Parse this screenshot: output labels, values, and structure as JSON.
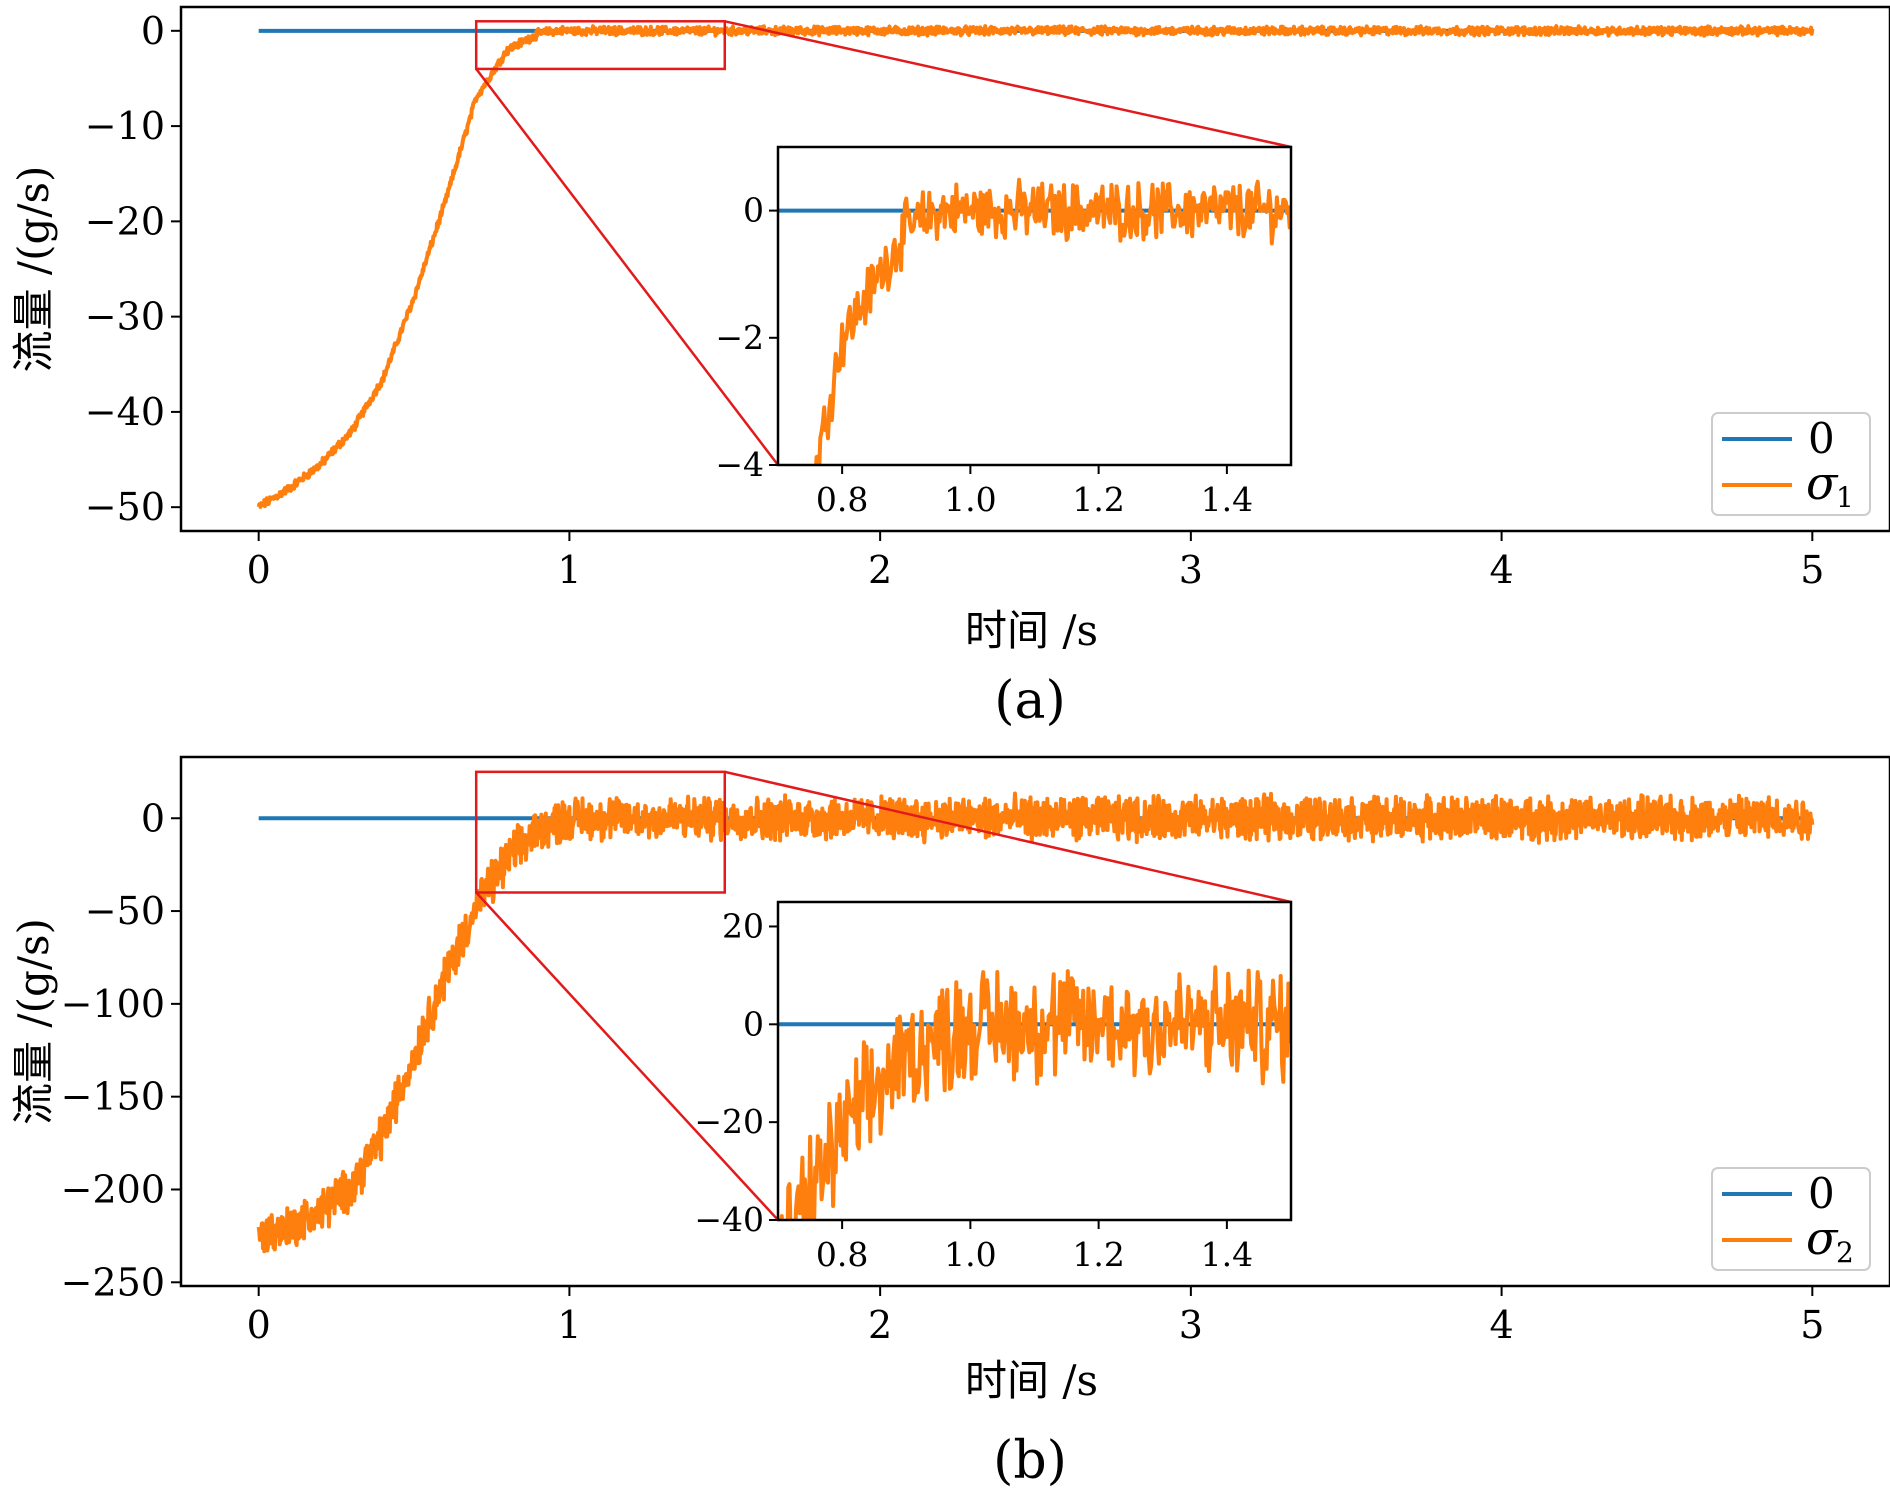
{
  "colors": {
    "reference": "#1f77b4",
    "signal": "#ff7f0e",
    "zoom_box": "#e31a1c",
    "axes": "#000000",
    "legend_border": "#cccccc"
  },
  "chart_data": [
    {
      "id": "a",
      "type": "line",
      "caption": "(a)",
      "xlabel": "时间 /s",
      "ylabel": "流量 /(g/s)",
      "xlim": [
        -0.25,
        5.25
      ],
      "ylim": [
        -52.5,
        2.5
      ],
      "xticks": [
        0,
        1,
        2,
        3,
        4,
        5
      ],
      "xtick_labels": [
        "0",
        "1",
        "2",
        "3",
        "4",
        "5"
      ],
      "yticks": [
        0,
        -10,
        -20,
        -30,
        -40,
        -50
      ],
      "ytick_labels": [
        "0",
        "−10",
        "−20",
        "−30",
        "−40",
        "−50"
      ],
      "grid": false,
      "legend_position": "lower-right",
      "series": [
        {
          "name": "0",
          "color_key": "reference",
          "x": [
            0,
            5
          ],
          "y": [
            0,
            0
          ]
        },
        {
          "name": "σ1",
          "color_key": "signal",
          "noise_amplitude": 0.35,
          "x": [
            0,
            0.1,
            0.2,
            0.3,
            0.4,
            0.5,
            0.6,
            0.7,
            0.8,
            0.9,
            0.95,
            1.0,
            1.2,
            1.5,
            2.0,
            3.0,
            4.0,
            5.0
          ],
          "y": [
            -50,
            -48,
            -45.5,
            -42,
            -36.5,
            -28,
            -18,
            -7,
            -2,
            -0.3,
            0,
            0,
            0,
            0,
            0,
            0,
            0,
            0
          ]
        }
      ],
      "zoom_box": {
        "x": [
          0.7,
          1.5
        ],
        "y": [
          -4,
          1
        ]
      },
      "inset": {
        "xlim": [
          0.7,
          1.5
        ],
        "ylim": [
          -4,
          1
        ],
        "xticks": [
          0.8,
          1.0,
          1.2,
          1.4
        ],
        "xtick_labels": [
          "0.8",
          "1.0",
          "1.2",
          "1.4"
        ],
        "yticks": [
          0,
          -2,
          -4
        ],
        "ytick_labels": [
          "0",
          "−2",
          "−4"
        ]
      }
    },
    {
      "id": "b",
      "type": "line",
      "caption": "(b)",
      "xlabel": "时间 /s",
      "ylabel": "流量 /(g/s)",
      "xlim": [
        -0.25,
        5.25
      ],
      "ylim": [
        -252,
        33
      ],
      "xticks": [
        0,
        1,
        2,
        3,
        4,
        5
      ],
      "xtick_labels": [
        "0",
        "1",
        "2",
        "3",
        "4",
        "5"
      ],
      "yticks": [
        0,
        -50,
        -100,
        -150,
        -200,
        -250
      ],
      "ytick_labels": [
        "0",
        "−50",
        "−100",
        "−150",
        "−200",
        "−250"
      ],
      "grid": false,
      "legend_position": "lower-right",
      "series": [
        {
          "name": "0",
          "color_key": "reference",
          "x": [
            0,
            5
          ],
          "y": [
            0,
            0
          ]
        },
        {
          "name": "σ2",
          "color_key": "signal",
          "noise_amplitude": 9,
          "x": [
            0,
            0.1,
            0.2,
            0.3,
            0.4,
            0.5,
            0.6,
            0.7,
            0.8,
            0.9,
            1.0,
            1.2,
            1.5,
            2.0,
            3.0,
            4.0,
            5.0
          ],
          "y": [
            -225,
            -220,
            -212,
            -198,
            -170,
            -128,
            -85,
            -48,
            -22,
            -6,
            0,
            0,
            0,
            0,
            0,
            0,
            0
          ]
        }
      ],
      "zoom_box": {
        "x": [
          0.7,
          1.5
        ],
        "y": [
          -40,
          25
        ]
      },
      "inset": {
        "xlim": [
          0.7,
          1.5
        ],
        "ylim": [
          -40,
          25
        ],
        "xticks": [
          0.8,
          1.0,
          1.2,
          1.4
        ],
        "xtick_labels": [
          "0.8",
          "1.0",
          "1.2",
          "1.4"
        ],
        "yticks": [
          20,
          0,
          -20,
          -40
        ],
        "ytick_labels": [
          "20",
          "0",
          "−20",
          "−40"
        ]
      }
    }
  ],
  "legend": {
    "reference_label": "0",
    "sigma_symbol": "σ",
    "subscript_a": "1",
    "subscript_b": "2"
  }
}
